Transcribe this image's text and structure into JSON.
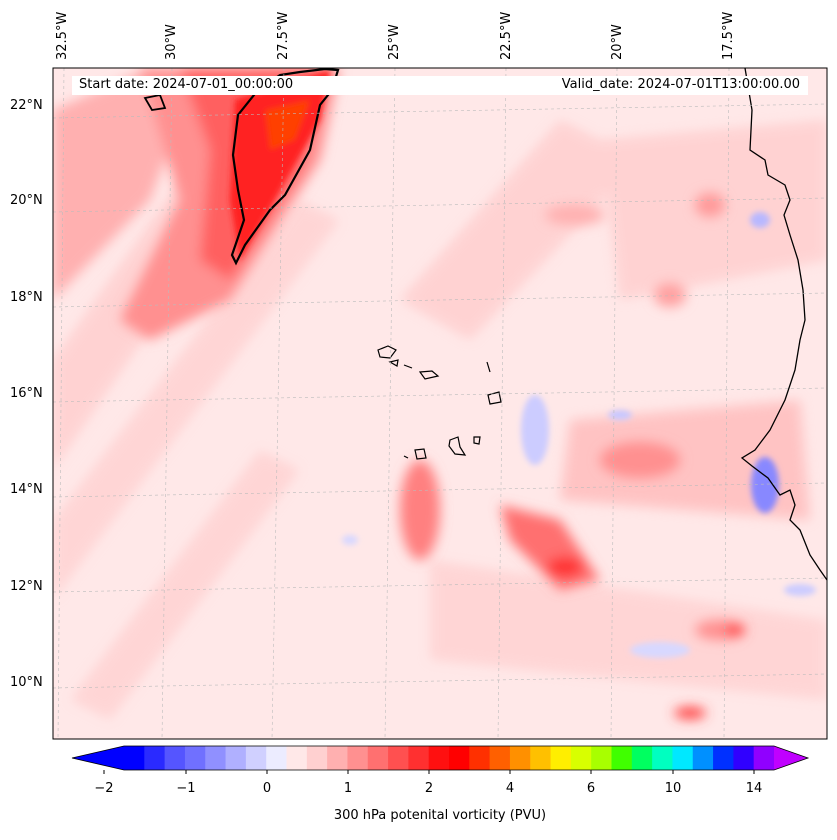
{
  "map": {
    "start_date_label": "Start date: 2024-07-01_00:00:00",
    "valid_date_label": "Valid_date: 2024-07-01T13:00:00.00",
    "lon_labels": [
      "32.5°W",
      "30°W",
      "27.5°W",
      "25°W",
      "22.5°W",
      "20°W",
      "17.5°W"
    ],
    "lat_labels": [
      "22°N",
      "20°N",
      "18°N",
      "16°N",
      "14°N",
      "12°N",
      "10°N"
    ]
  },
  "colorbar": {
    "title": "300 hPa potenital vorticity (PVU)",
    "tick_labels": [
      "−2",
      "−1",
      "0",
      "1",
      "2",
      "4",
      "6",
      "10",
      "14"
    ],
    "colors": [
      "#0000ff",
      "#2a2aff",
      "#5555ff",
      "#7070ff",
      "#9090ff",
      "#b0b0ff",
      "#d0d0ff",
      "#ececff",
      "#ffe8e8",
      "#ffd0d0",
      "#ffb0b0",
      "#ff9090",
      "#ff7070",
      "#ff5050",
      "#ff3030",
      "#ff1010",
      "#ff0000",
      "#ff3000",
      "#ff6000",
      "#ff9000",
      "#ffc000",
      "#ffee00",
      "#d8ff00",
      "#a8ff00",
      "#40ff00",
      "#00ff60",
      "#00ffc0",
      "#00e8ff",
      "#0090ff",
      "#0030ff",
      "#3000ff",
      "#9000ff"
    ],
    "extend_low_color": "#0000ff",
    "extend_high_color": "#c000ff"
  }
}
